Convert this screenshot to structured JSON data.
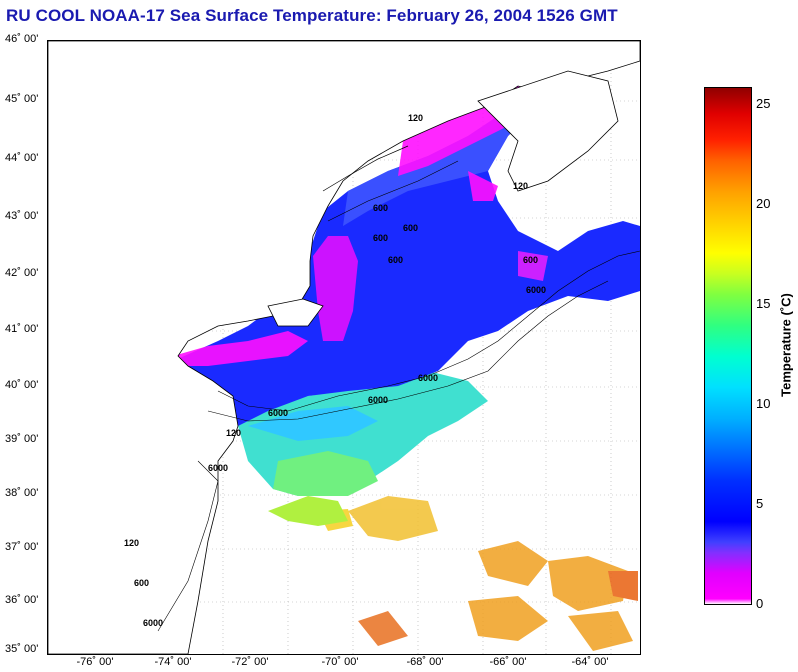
{
  "title": "RU COOL  NOAA-17  Sea Surface Temperature:  February 26, 2004 1526 GMT",
  "lat_labels": [
    "46˚ 00'",
    "45˚ 00'",
    "44˚ 00'",
    "43˚ 00'",
    "42˚ 00'",
    "41˚ 00'",
    "40˚ 00'",
    "39˚ 00'",
    "38˚ 00'",
    "37˚ 00'",
    "36˚ 00'",
    "35˚ 00'"
  ],
  "lon_labels": [
    "-76˚ 00'",
    "-74˚ 00'",
    "-72˚ 00'",
    "-70˚ 00'",
    "-68˚ 00'",
    "-66˚ 00'",
    "-64˚ 00'"
  ],
  "colorbar": {
    "label": "Temperature (˚C)",
    "ticks": [
      "25",
      "20",
      "15",
      "10",
      "5",
      "0"
    ],
    "min": 0,
    "max": 26
  },
  "contour_labels": [
    "600",
    "600",
    "600",
    "600",
    "600",
    "6000",
    "6000",
    "6000",
    "6000",
    "6000",
    "120",
    "120",
    "120",
    "120",
    "600",
    "6000"
  ],
  "colors": {
    "title": "#1a1ab0",
    "cold_magenta": "#ff00ff",
    "blue": "#1a1aff",
    "cyan": "#40e0e0",
    "warm_orange": "#f0a020"
  }
}
